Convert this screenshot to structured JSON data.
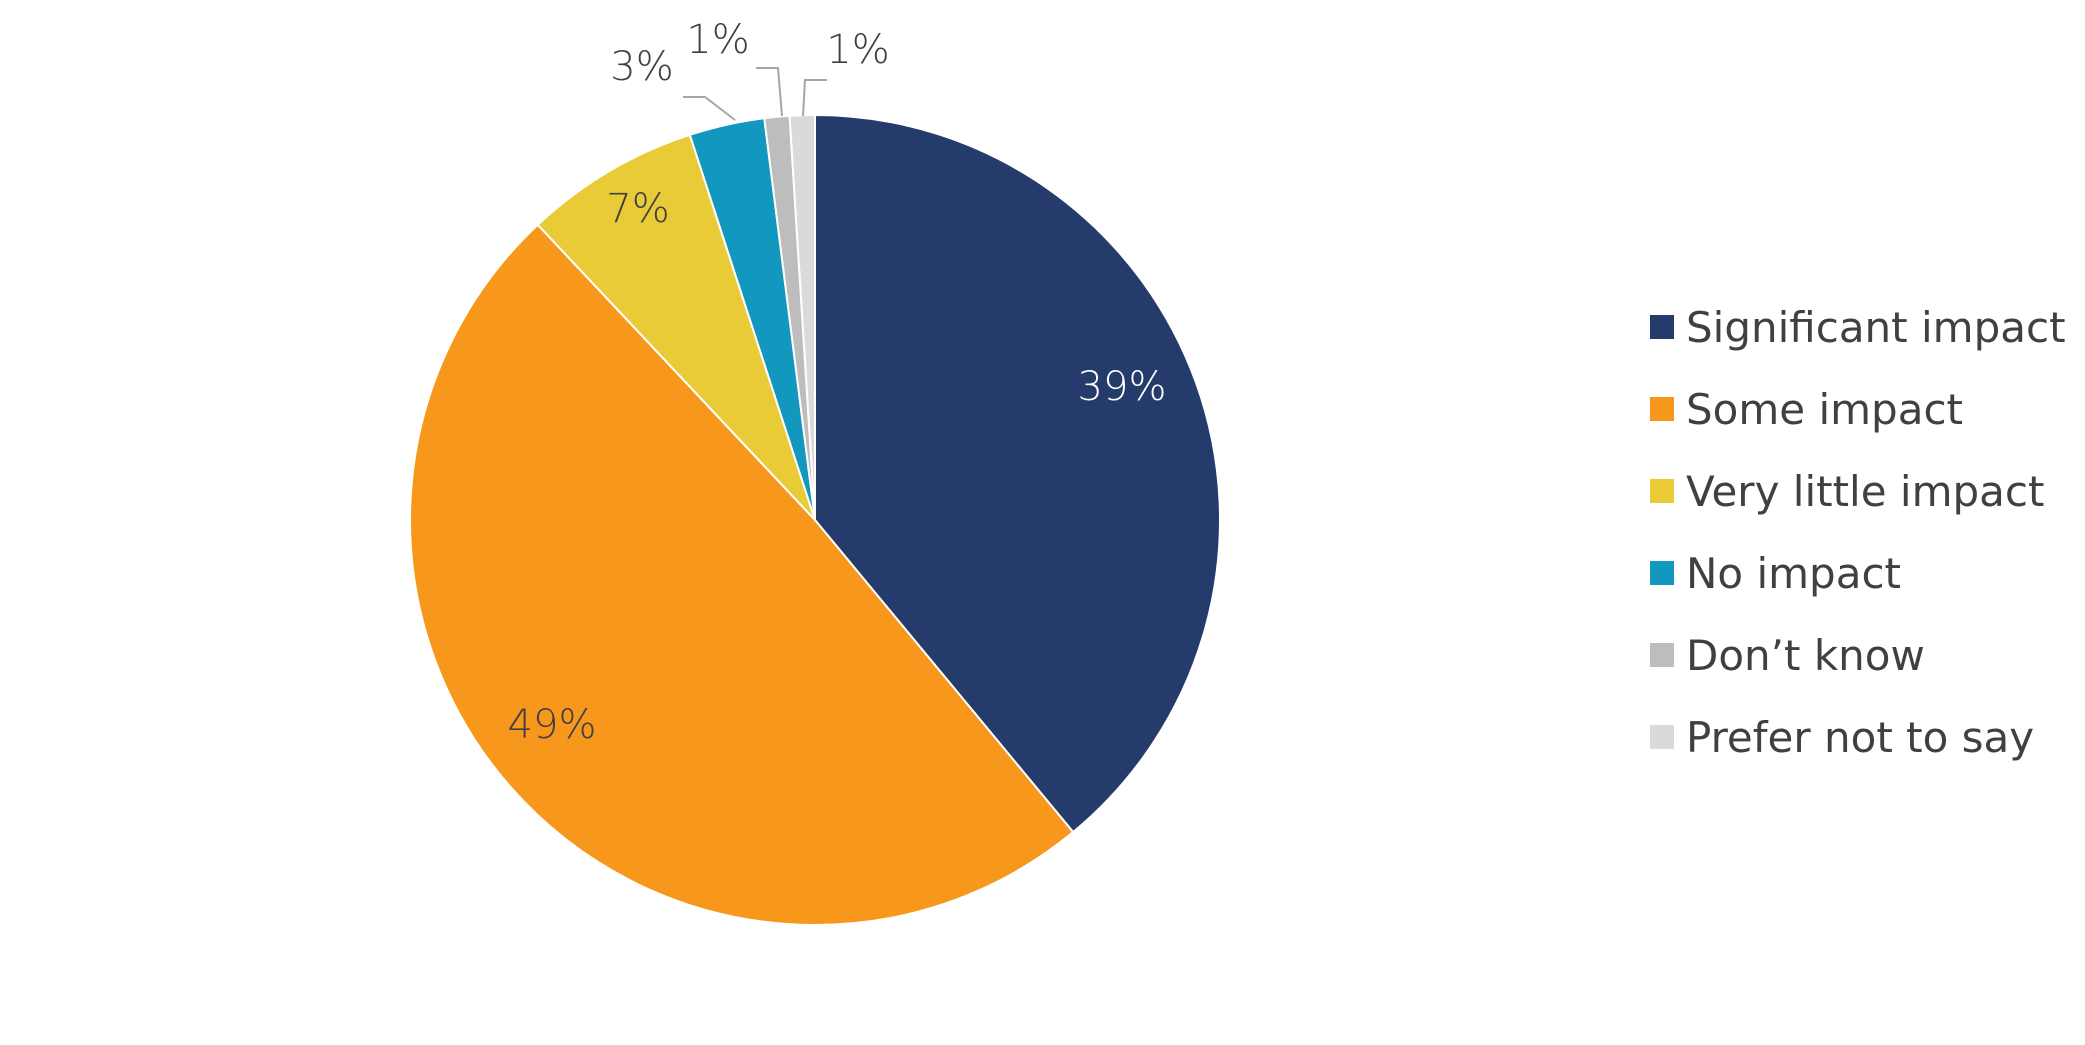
{
  "chart_data": {
    "type": "pie",
    "title": "",
    "categories": [
      "Significant impact",
      "Some impact",
      "Very little impact",
      "No impact",
      "Don’t know",
      "Prefer not to say"
    ],
    "values": [
      39,
      49,
      7,
      3,
      1,
      1
    ],
    "labels": [
      "39%",
      "49%",
      "7%",
      "3%",
      "1%",
      "1%"
    ],
    "colors": [
      "#253B6B",
      "#F7981D",
      "#E9CB38",
      "#1297BE",
      "#BDBDBD",
      "#DADADA"
    ],
    "label_colors": [
      "#FFFFFF",
      "#404040",
      "#404040",
      "#404040",
      "#404040",
      "#404040"
    ],
    "start_angle_deg": 0,
    "direction": "clockwise",
    "legend_position": "right"
  }
}
